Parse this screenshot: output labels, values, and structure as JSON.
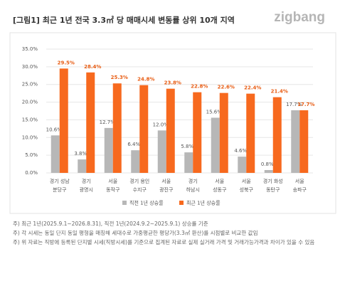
{
  "header": {
    "title": "[그림1] 최근 1년 전국 3.3㎡ 당 매매시세 변동률 상위 10개 지역",
    "logo": "zigbang"
  },
  "chart_data": {
    "type": "bar",
    "categories": [
      [
        "경기 성남",
        "분당구"
      ],
      [
        "경기",
        "광명시"
      ],
      [
        "서울",
        "동작구"
      ],
      [
        "경기 용인",
        "수지구"
      ],
      [
        "서울",
        "광진구"
      ],
      [
        "경기",
        "하남시"
      ],
      [
        "서울",
        "성동구"
      ],
      [
        "서울",
        "성북구"
      ],
      [
        "경기 화성",
        "동탄구"
      ],
      [
        "서울",
        "송파구"
      ]
    ],
    "series": [
      {
        "name": "직전 1년 상승률",
        "color": "#b7b7b7",
        "values": [
          10.6,
          3.8,
          12.7,
          6.4,
          12.0,
          5.8,
          15.6,
          4.6,
          0.8,
          17.7
        ],
        "value_labels": [
          "10.6%",
          "3.8%",
          "12.7%",
          "6.4%",
          "12.0%",
          "5.8%",
          "15.6%",
          "4.6%",
          "0.8%",
          "17.7%"
        ]
      },
      {
        "name": "최근 1년 상승률",
        "color": "#f7691e",
        "values": [
          29.5,
          28.4,
          25.3,
          24.8,
          23.8,
          22.8,
          22.6,
          22.4,
          21.4,
          17.7
        ],
        "value_labels": [
          "29.5%",
          "28.4%",
          "25.3%",
          "24.8%",
          "23.8%",
          "22.8%",
          "22.6%",
          "22.4%",
          "21.4%",
          "17.7%"
        ]
      }
    ],
    "ylim": [
      0,
      35
    ],
    "yticks": [
      {
        "value": 0,
        "label": "0.0%"
      },
      {
        "value": 5,
        "label": "5.0%"
      },
      {
        "value": 10,
        "label": "10.0%"
      },
      {
        "value": 15,
        "label": "15.0%"
      },
      {
        "value": 20,
        "label": "20.0%"
      },
      {
        "value": 25,
        "label": "25.0%"
      },
      {
        "value": 30,
        "label": "30.0%"
      },
      {
        "value": 35,
        "label": "35.0%"
      }
    ],
    "grid": true
  },
  "notes": [
    "주) 최근 1년(2025.9.1~2026.8.31), 직전 1년(2024.9.2~2025.9.1) 상승률 기준",
    "주) 각 시세는 동일 단지 동일 평형을 매칭해 세대수로 가중평균한 평당가(3.3㎡ 환산)를 시점별로 비교한 값임",
    "주) 위 자료는 직방에 등록된 단지별 시세(직방시세)를 기준으로 집계된 자료로 실제 실거래 가격 및 거래가능가격과 차이가 있을 수 있음"
  ]
}
